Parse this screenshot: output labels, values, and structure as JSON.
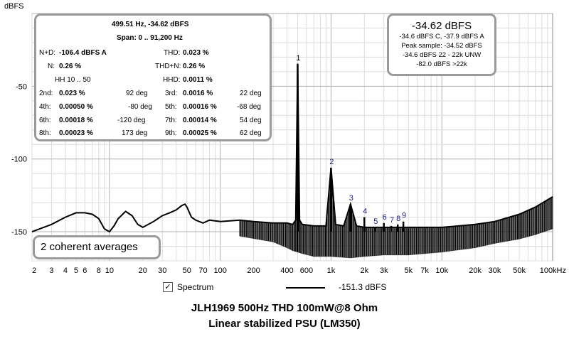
{
  "stats": {
    "header_freq": "499.51 Hz, -34.62 dBFS",
    "span": "Span: 0 .. 91,200 Hz",
    "nd_label": "N+D:",
    "nd_value": "-106.4 dBFS A",
    "thd_label": "THD:",
    "thd_value": "0.023 %",
    "n_label": "N:",
    "n_value": "0.26 %",
    "thdn_label": "THD+N:",
    "thdn_value": "0.26 %",
    "hh_label": "HH 10 .. 50",
    "hhd_label": "HHD:",
    "hhd_value": "0.0011 %",
    "harmonics": [
      {
        "label": "2nd:",
        "value": "0.023 %",
        "phase": "92 deg"
      },
      {
        "label": "3rd:",
        "value": "0.0016 %",
        "phase": "22 deg"
      },
      {
        "label": "4th:",
        "value": "0.00050 %",
        "phase": "-80 deg"
      },
      {
        "label": "5th:",
        "value": "0.00016 %",
        "phase": "-68 deg"
      },
      {
        "label": "6th:",
        "value": "0.00018 %",
        "phase": "-120 deg"
      },
      {
        "label": "7th:",
        "value": "0.00014 %",
        "phase": "54 deg"
      },
      {
        "label": "8th:",
        "value": "0.00023 %",
        "phase": "173 deg"
      },
      {
        "label": "9th:",
        "value": "0.00025 %",
        "phase": "62 deg"
      }
    ]
  },
  "level": {
    "main": "-34.62 dBFS",
    "line1": "-34.6 dBFS C, -37.9 dBFS A",
    "line2": "Peak sample: -34.52 dBFS",
    "line3": "-34.6 dBFS 22 - 22k UNW",
    "line4": "-82.0 dBFS >22k"
  },
  "averages": "2 coherent averages",
  "legend": {
    "checkbox": "✓",
    "name": "Spectrum",
    "value": "-151.3 dBFS"
  },
  "caption": {
    "line1": "JLH1969 500Hz THD 100mW@8 Ohm",
    "line2": "Linear stabilized PSU (LM350)"
  },
  "chart_data": {
    "type": "line",
    "ylabel": "dBFS",
    "x_scale": "log",
    "xlim": [
      2,
      100000
    ],
    "ylim": [
      -170,
      0
    ],
    "grid": true,
    "y_ticks": [
      -50,
      -100,
      -150
    ],
    "x_ticks": [
      {
        "v": 2,
        "label": "2"
      },
      {
        "v": 3,
        "label": "3"
      },
      {
        "v": 4,
        "label": "4"
      },
      {
        "v": 5,
        "label": "5"
      },
      {
        "v": 6,
        "label": "6"
      },
      {
        "v": 8,
        "label": "8"
      },
      {
        "v": 10,
        "label": "10"
      },
      {
        "v": 20,
        "label": "20"
      },
      {
        "v": 30,
        "label": "30"
      },
      {
        "v": 50,
        "label": "50"
      },
      {
        "v": 70,
        "label": "70"
      },
      {
        "v": 100,
        "label": "100"
      },
      {
        "v": 200,
        "label": "200"
      },
      {
        "v": 400,
        "label": "400"
      },
      {
        "v": 600,
        "label": "600"
      },
      {
        "v": 1000,
        "label": "1k"
      },
      {
        "v": 2000,
        "label": "2k"
      },
      {
        "v": 3000,
        "label": "3k"
      },
      {
        "v": 5000,
        "label": "5k"
      },
      {
        "v": 7000,
        "label": "7k"
      },
      {
        "v": 10000,
        "label": "10k"
      },
      {
        "v": 20000,
        "label": "20k"
      },
      {
        "v": 30000,
        "label": "30k"
      },
      {
        "v": 50000,
        "label": "50k"
      },
      {
        "v": 100000,
        "label": "100kHz"
      }
    ],
    "series": [
      {
        "name": "Spectrum",
        "x": [
          2,
          3,
          4,
          5,
          6,
          7,
          8,
          9,
          10,
          11,
          12,
          14,
          16,
          18,
          20,
          25,
          30,
          35,
          40,
          45,
          48,
          50,
          55,
          60,
          70,
          80,
          100,
          150,
          200,
          300,
          400,
          450,
          480,
          499.5,
          520,
          550,
          700,
          900,
          999,
          1100,
          1300,
          1498,
          1700,
          2000,
          3000,
          5000,
          7000,
          10000,
          20000,
          30000,
          50000,
          70000,
          100000
        ],
        "y": [
          -150,
          -145,
          -140,
          -137,
          -137,
          -138,
          -141,
          -148,
          -150,
          -146,
          -141,
          -136,
          -139,
          -145,
          -147,
          -143,
          -139,
          -137,
          -135,
          -132,
          -131,
          -133,
          -140,
          -142,
          -144,
          -142,
          -143,
          -142,
          -143,
          -144,
          -144,
          -145,
          -142,
          -34.6,
          -142,
          -145,
          -146,
          -146,
          -106,
          -145,
          -146,
          -131,
          -146,
          -147,
          -147,
          -147,
          -147,
          -147,
          -145,
          -143,
          -138,
          -133,
          -126
        ]
      },
      {
        "name": "noise_floor",
        "x": [
          150,
          300,
          400,
          450,
          550,
          700,
          1000,
          1500,
          2000,
          3000,
          5000,
          7000,
          10000,
          20000,
          30000,
          50000,
          70000,
          100000
        ],
        "y": [
          -153,
          -157,
          -161,
          -163,
          -165,
          -167,
          -167,
          -168,
          -167,
          -166,
          -166,
          -165,
          -164,
          -161,
          -158,
          -155,
          -152,
          -148
        ]
      }
    ],
    "peaks": [
      {
        "label": "1",
        "x": 499.5,
        "y": -34.6
      },
      {
        "label": "2",
        "x": 999,
        "y": -106
      },
      {
        "label": "3",
        "x": 1498,
        "y": -131
      },
      {
        "label": "4",
        "x": 1998,
        "y": -140
      },
      {
        "label": "5",
        "x": 2497,
        "y": -147
      },
      {
        "label": "6",
        "x": 2997,
        "y": -144
      },
      {
        "label": "7",
        "x": 3496,
        "y": -146
      },
      {
        "label": "8",
        "x": 3996,
        "y": -145
      },
      {
        "label": "9",
        "x": 4495,
        "y": -143
      }
    ]
  }
}
